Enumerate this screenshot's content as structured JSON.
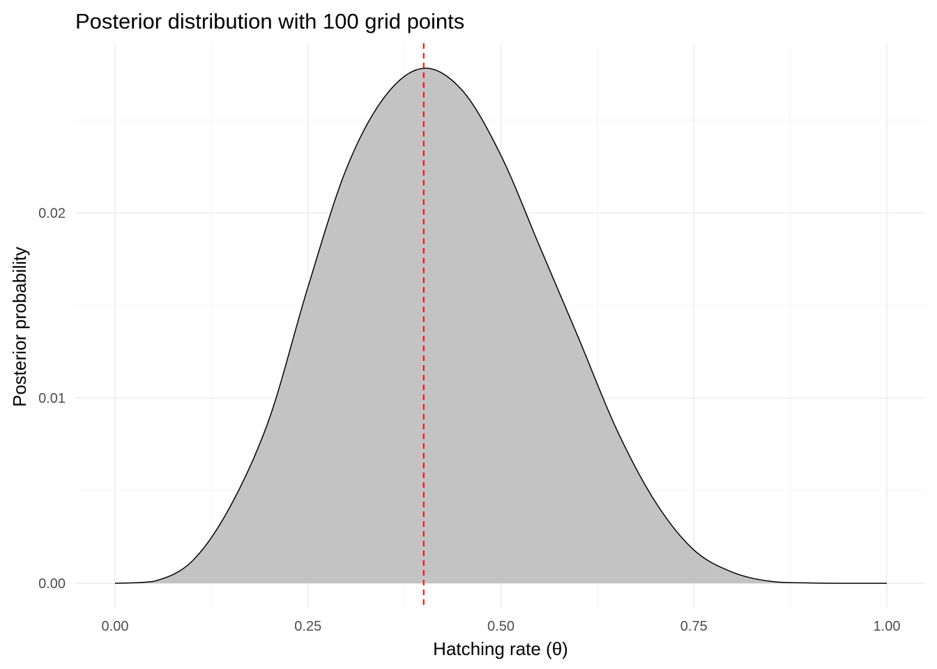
{
  "chart_data": {
    "type": "area",
    "title": "Posterior distribution with 100 grid points",
    "xlabel": "Hatching rate (θ)",
    "ylabel": "Posterior probability",
    "xlim": [
      0,
      1
    ],
    "ylim": [
      0,
      0.0278
    ],
    "x_ticks": [
      {
        "value": 0,
        "label": "0.00"
      },
      {
        "value": 0.25,
        "label": "0.25"
      },
      {
        "value": 0.5,
        "label": "0.50"
      },
      {
        "value": 0.75,
        "label": "0.75"
      },
      {
        "value": 1,
        "label": "1.00"
      }
    ],
    "y_ticks": [
      {
        "value": 0,
        "label": "0.00"
      },
      {
        "value": 0.01,
        "label": "0.01"
      },
      {
        "value": 0.02,
        "label": "0.02"
      }
    ],
    "grid": true,
    "legend": "none",
    "fill_color": "#c3c3c3",
    "line_color": "#000000",
    "reference_line": {
      "x": 0.4,
      "color": "#ff0000",
      "style": "dashed"
    },
    "series": [
      {
        "x": [
          0,
          0.05,
          0.1,
          0.15,
          0.2,
          0.25,
          0.3,
          0.35,
          0.4,
          0.45,
          0.5,
          0.55,
          0.6,
          0.65,
          0.7,
          0.75,
          0.8,
          0.85,
          0.9,
          0.95,
          1
        ],
        "values": [
          0,
          0.0001,
          0.0012,
          0.0042,
          0.0089,
          0.016,
          0.0224,
          0.0263,
          0.0278,
          0.0266,
          0.0231,
          0.0182,
          0.0133,
          0.0083,
          0.0044,
          0.0018,
          0.0006,
          0.0001,
          2e-05,
          0,
          0
        ]
      }
    ]
  }
}
